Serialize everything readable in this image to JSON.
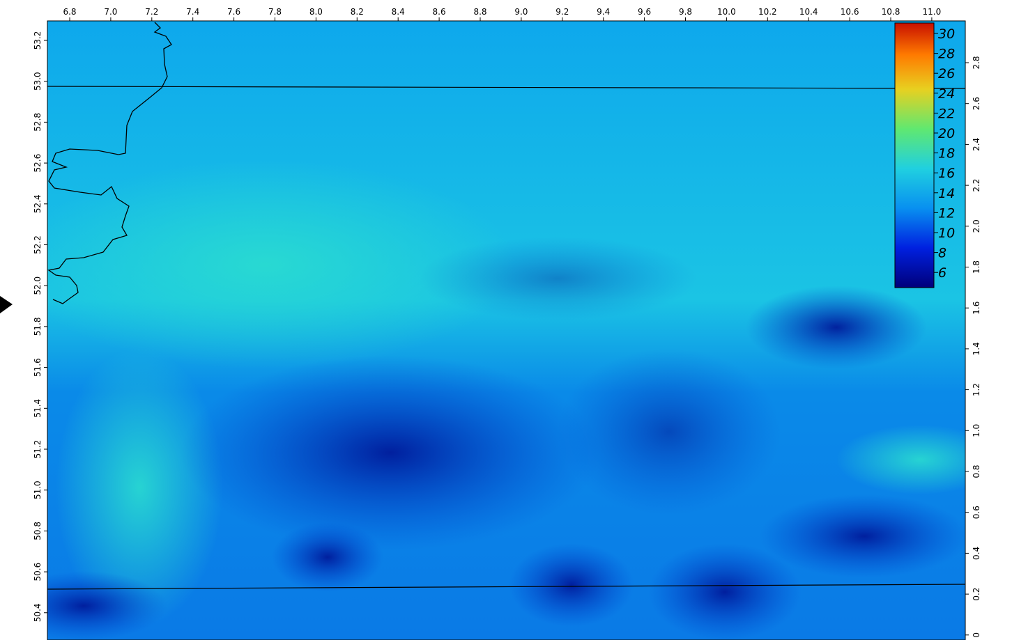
{
  "map": {
    "top_ticks": [
      "6.8",
      "7.0",
      "7.2",
      "7.4",
      "7.6",
      "7.8",
      "8.0",
      "8.2",
      "8.4",
      "8.6",
      "8.8",
      "9.0",
      "9.2",
      "9.4",
      "9.6",
      "9.8",
      "10.0",
      "10.2",
      "10.4",
      "10.6",
      "10.8",
      "11.0"
    ],
    "left_ticks": [
      "53.2",
      "53.0",
      "52.8",
      "52.6",
      "52.4",
      "52.2",
      "52.0",
      "51.8",
      "51.6",
      "51.4",
      "51.2",
      "51.0",
      "50.8",
      "50.6",
      "50.4"
    ],
    "right_ticks": [
      "2.8",
      "2.6",
      "2.4",
      "2.2",
      "2.0",
      "1.8",
      "1.6",
      "1.4",
      "1.2",
      "1.0",
      "0.8",
      "0.6",
      "0.4",
      "0.2",
      "0"
    ],
    "colorbar_ticks": [
      "30",
      "28",
      "26",
      "24",
      "22",
      "20",
      "18",
      "16",
      "14",
      "12",
      "10",
      "8",
      "6"
    ]
  }
}
